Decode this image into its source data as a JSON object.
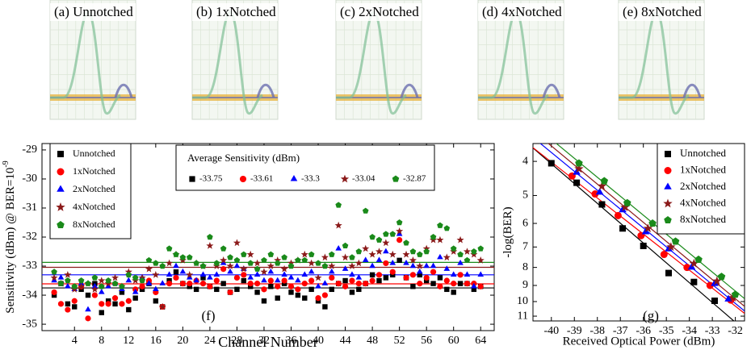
{
  "eye_diagrams": {
    "labels": [
      "(a) Unnotched",
      "(b) 1xNotched",
      "(c) 2xNotched",
      "(d) 4xNotched",
      "(e) 8xNotched"
    ]
  },
  "chart_data": [
    {
      "type": "scatter",
      "panel_label": "(f)",
      "xlabel": "Channel Number",
      "ylabel": "Sensitivity (dBm) @ BER=10",
      "ylabel_exponent": "-9",
      "average_title": "Average Sensitivity (dBm)",
      "xlim": [
        -0.8,
        66
      ],
      "xticks": [
        4,
        8,
        12,
        16,
        20,
        24,
        28,
        32,
        36,
        40,
        44,
        48,
        52,
        56,
        60,
        64
      ],
      "ylim": [
        -35.22,
        -28.78
      ],
      "yticks": [
        -35,
        -34,
        -33,
        -32,
        -31,
        -30,
        -29
      ],
      "x": [
        1,
        2,
        3,
        4,
        5,
        6,
        7,
        8,
        9,
        10,
        11,
        12,
        13,
        14,
        15,
        16,
        17,
        18,
        19,
        20,
        21,
        22,
        23,
        24,
        25,
        26,
        27,
        28,
        29,
        30,
        31,
        32,
        33,
        34,
        35,
        36,
        37,
        38,
        39,
        40,
        41,
        42,
        43,
        44,
        45,
        46,
        47,
        48,
        49,
        50,
        51,
        52,
        53,
        54,
        55,
        56,
        57,
        58,
        59,
        60,
        61,
        62,
        63,
        64
      ],
      "series": [
        {
          "name": "Unnotched",
          "color": "#000000",
          "marker": "square",
          "average": -33.75,
          "values": [
            -34.0,
            -33.6,
            -34.3,
            -34.4,
            -33.8,
            -34.0,
            -33.6,
            -34.6,
            -34.2,
            -34.3,
            -33.9,
            -34.5,
            -34.1,
            -33.8,
            -33.6,
            -34.2,
            -34.4,
            -33.5,
            -33.2,
            -33.6,
            -33.7,
            -33.8,
            -33.4,
            -33.7,
            -33.8,
            -33.6,
            -33.9,
            -33.8,
            -33.5,
            -33.7,
            -33.9,
            -34.2,
            -33.7,
            -34.1,
            -33.6,
            -33.9,
            -34.0,
            -34.1,
            -33.8,
            -34.2,
            -34.4,
            -33.8,
            -33.6,
            -33.5,
            -33.9,
            -33.8,
            -33.6,
            -33.3,
            -33.5,
            -33.4,
            -33.3,
            -32.8,
            -33.4,
            -33.7,
            -33.3,
            -33.5,
            -33.6,
            -33.4,
            -33.8,
            -33.9,
            -33.6,
            -33.6,
            -33.8,
            -33.7
          ]
        },
        {
          "name": "1xNotched",
          "color": "#ff0000",
          "marker": "circle",
          "average": -33.61,
          "values": [
            -33.9,
            -34.3,
            -34.5,
            -34.2,
            -33.7,
            -34.8,
            -34.0,
            -34.3,
            -34.3,
            -34.1,
            -34.3,
            -34.2,
            -33.8,
            -33.7,
            -33.5,
            -33.9,
            -34.4,
            -33.6,
            -33.4,
            -33.6,
            -33.6,
            -33.5,
            -33.6,
            -33.7,
            -33.5,
            -33.1,
            -33.9,
            -33.4,
            -33.3,
            -33.6,
            -33.6,
            -33.8,
            -33.5,
            -33.7,
            -33.5,
            -33.7,
            -33.8,
            -33.6,
            -33.5,
            -34.1,
            -34.0,
            -33.4,
            -33.6,
            -33.7,
            -33.5,
            -33.6,
            -33.6,
            -33.5,
            -33.3,
            -32.9,
            -33.2,
            -32.1,
            -33.4,
            -33.3,
            -33.6,
            -33.4,
            -33.2,
            -33.7,
            -33.5,
            -33.6,
            -33.3,
            -33.6,
            -33.6,
            -33.7
          ]
        },
        {
          "name": "2xNotched",
          "color": "#0000ff",
          "marker": "triangle",
          "average": -33.3,
          "values": [
            -33.5,
            -33.4,
            -33.7,
            -33.8,
            -33.6,
            -34.5,
            -33.7,
            -33.9,
            -33.7,
            -33.6,
            -33.8,
            -33.5,
            -33.9,
            -33.4,
            -33.6,
            -33.8,
            -33.6,
            -33.3,
            -33.0,
            -33.2,
            -33.4,
            -33.5,
            -33.3,
            -33.4,
            -33.3,
            -32.9,
            -33.2,
            -33.0,
            -33.1,
            -33.4,
            -33.3,
            -33.5,
            -33.2,
            -33.5,
            -33.3,
            -33.4,
            -33.5,
            -33.3,
            -33.2,
            -33.7,
            -33.6,
            -33.2,
            -32.4,
            -33.1,
            -33.3,
            -33.4,
            -32.8,
            -33.0,
            -32.8,
            -32.5,
            -32.9,
            -31.9,
            -32.9,
            -33.0,
            -33.2,
            -33.0,
            -33.0,
            -32.7,
            -33.1,
            -33.3,
            -32.9,
            -33.3,
            -33.7,
            -33.3
          ]
        },
        {
          "name": "4xNotched",
          "color": "#8b1a1a",
          "marker": "star",
          "average": -33.04,
          "values": [
            -33.4,
            -33.6,
            -33.3,
            -33.8,
            -33.7,
            -33.6,
            -33.8,
            -33.5,
            -33.6,
            -33.4,
            -33.7,
            -33.2,
            -33.5,
            -33.4,
            -33.1,
            -33.3,
            -34.4,
            -32.9,
            -32.6,
            -32.8,
            -33.3,
            -32.9,
            -33.0,
            -32.3,
            -33.0,
            -32.8,
            -33.0,
            -32.2,
            -33.1,
            -32.6,
            -32.9,
            -33.2,
            -33.0,
            -32.8,
            -33.1,
            -32.9,
            -32.8,
            -32.6,
            -32.9,
            -33.4,
            -32.7,
            -33.0,
            -31.6,
            -32.7,
            -33.0,
            -32.9,
            -32.4,
            -32.6,
            -32.5,
            -32.2,
            -32.6,
            -31.8,
            -32.6,
            -32.8,
            -33.0,
            -32.4,
            -32.1,
            -32.1,
            -32.7,
            -32.5,
            -32.1,
            -32.5,
            -32.6,
            -32.8
          ]
        },
        {
          "name": "8xNotched",
          "color": "#1a8a1a",
          "marker": "pentagon",
          "average": -32.87,
          "values": [
            -33.2,
            -33.6,
            -33.5,
            -33.7,
            -33.5,
            -33.6,
            -33.4,
            -33.7,
            -33.5,
            -33.6,
            -33.7,
            -33.3,
            -33.4,
            -33.5,
            -32.8,
            -32.9,
            -33.0,
            -32.4,
            -32.6,
            -32.7,
            -32.7,
            -32.9,
            -33.0,
            -32.0,
            -32.9,
            -32.4,
            -32.7,
            -32.8,
            -32.6,
            -32.9,
            -33.1,
            -32.8,
            -32.6,
            -32.9,
            -32.7,
            -33.0,
            -32.8,
            -32.8,
            -32.6,
            -32.9,
            -33.0,
            -32.6,
            -30.9,
            -32.3,
            -32.7,
            -32.5,
            -31.1,
            -32.0,
            -32.1,
            -31.9,
            -31.9,
            -31.5,
            -32.2,
            -32.5,
            -32.6,
            -32.5,
            -32.0,
            -31.6,
            -31.7,
            -32.4,
            -32.6,
            -32.8,
            -32.5,
            -32.4
          ]
        }
      ]
    },
    {
      "type": "scatter",
      "panel_label": "(g)",
      "xlabel": "Received Optical Power (dBm)",
      "ylabel": "-log(BER)",
      "yscale": "log",
      "yinverted": true,
      "fit_lines": true,
      "xlim": [
        -40.8,
        -31.6
      ],
      "xticks": [
        -40,
        -39,
        -38,
        -37,
        -36,
        -35,
        -34,
        -33,
        -32
      ],
      "ylim": [
        3.56,
        11.35
      ],
      "yticks": [
        4,
        5,
        6,
        7,
        8,
        9,
        10,
        11
      ],
      "series": [
        {
          "name": "Unnotched",
          "color": "#000000",
          "marker": "square",
          "x": [
            -40,
            -38.9,
            -37.8,
            -36.9,
            -36,
            -34.9,
            -33.8,
            -32.9
          ],
          "values": [
            4.05,
            4.6,
            5.3,
            6.2,
            6.95,
            8.3,
            8.8,
            9.95
          ]
        },
        {
          "name": "1xNotched",
          "color": "#ff0000",
          "marker": "circle",
          "x": [
            -39.1,
            -38.1,
            -37.1,
            -36.1,
            -35.1,
            -34.1,
            -33.1,
            -32.2
          ],
          "values": [
            4.4,
            4.95,
            5.7,
            6.5,
            7.35,
            8.0,
            9.0,
            9.9
          ]
        },
        {
          "name": "2xNotched",
          "color": "#0000ff",
          "marker": "triangle",
          "x": [
            -38.9,
            -37.9,
            -36.9,
            -35.9,
            -34.9,
            -33.9,
            -32.9,
            -32.3
          ],
          "values": [
            4.3,
            4.9,
            5.5,
            6.35,
            7.1,
            8.0,
            8.9,
            9.85
          ]
        },
        {
          "name": "4xNotched",
          "color": "#8b1a1a",
          "marker": "star",
          "x": [
            -38.8,
            -37.8,
            -36.8,
            -35.8,
            -34.8,
            -33.8,
            -32.8,
            -32.1
          ],
          "values": [
            4.2,
            4.7,
            5.4,
            6.2,
            7.0,
            7.8,
            8.75,
            9.75
          ]
        },
        {
          "name": "8xNotched",
          "color": "#1a8a1a",
          "marker": "pentagon",
          "x": [
            -38.8,
            -37.7,
            -36.7,
            -35.6,
            -34.6,
            -33.6,
            -32.6,
            -32.0
          ],
          "values": [
            4.05,
            4.55,
            5.25,
            6.0,
            6.75,
            7.6,
            8.5,
            9.55
          ]
        }
      ]
    }
  ]
}
